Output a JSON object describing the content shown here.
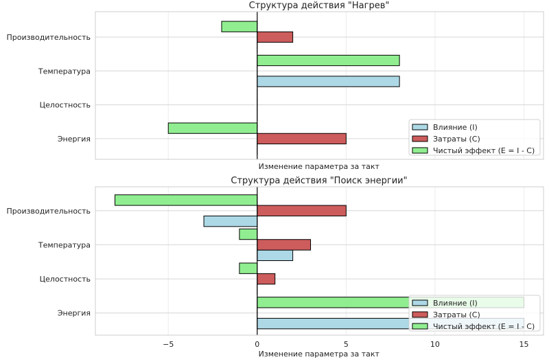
{
  "chart_data": [
    {
      "type": "bar",
      "orientation": "horizontal",
      "title": "Структура действия \"Нагрев\"",
      "xlabel": "Изменение параметра за такт",
      "ylabel": "",
      "xlim": [
        -9.1,
        16.1
      ],
      "ylim": [
        -0.61,
        3.75
      ],
      "xticks": [
        -5,
        0,
        5,
        10,
        15
      ],
      "show_xtick_labels": false,
      "grid": true,
      "legend_position": "lower-right",
      "categories": [
        "Энергия",
        "Целостность",
        "Температура",
        "Производительность"
      ],
      "series": [
        {
          "name": "Влияние (I)",
          "color": "#add8e6",
          "values": [
            0,
            0,
            8,
            0
          ]
        },
        {
          "name": "Затраты (C)",
          "color": "#cd5c5c",
          "values": [
            5,
            0,
            0,
            2
          ]
        },
        {
          "name": "Чистый эффект (E = I - C)",
          "color": "#90ee90",
          "values": [
            -5,
            0,
            8,
            -2
          ]
        }
      ]
    },
    {
      "type": "bar",
      "orientation": "horizontal",
      "title": "Структура действия \"Поиск энергии\"",
      "xlabel": "Изменение параметра за такт",
      "ylabel": "",
      "xlim": [
        -9.1,
        16.1
      ],
      "ylim": [
        -0.65,
        3.7
      ],
      "xticks": [
        -5,
        0,
        5,
        10,
        15
      ],
      "xtick_labels": [
        "−5",
        "0",
        "5",
        "10",
        "15"
      ],
      "show_xtick_labels": true,
      "grid": true,
      "legend_position": "lower-right",
      "categories": [
        "Энергия",
        "Целостность",
        "Температура",
        "Производительность"
      ],
      "series": [
        {
          "name": "Влияние (I)",
          "color": "#add8e6",
          "values": [
            15,
            0,
            2,
            -3
          ]
        },
        {
          "name": "Затраты (C)",
          "color": "#cd5c5c",
          "values": [
            0,
            1,
            3,
            5
          ]
        },
        {
          "name": "Чистый эффект (E = I - C)",
          "color": "#90ee90",
          "values": [
            15,
            -1,
            -1,
            -8
          ]
        }
      ]
    }
  ]
}
